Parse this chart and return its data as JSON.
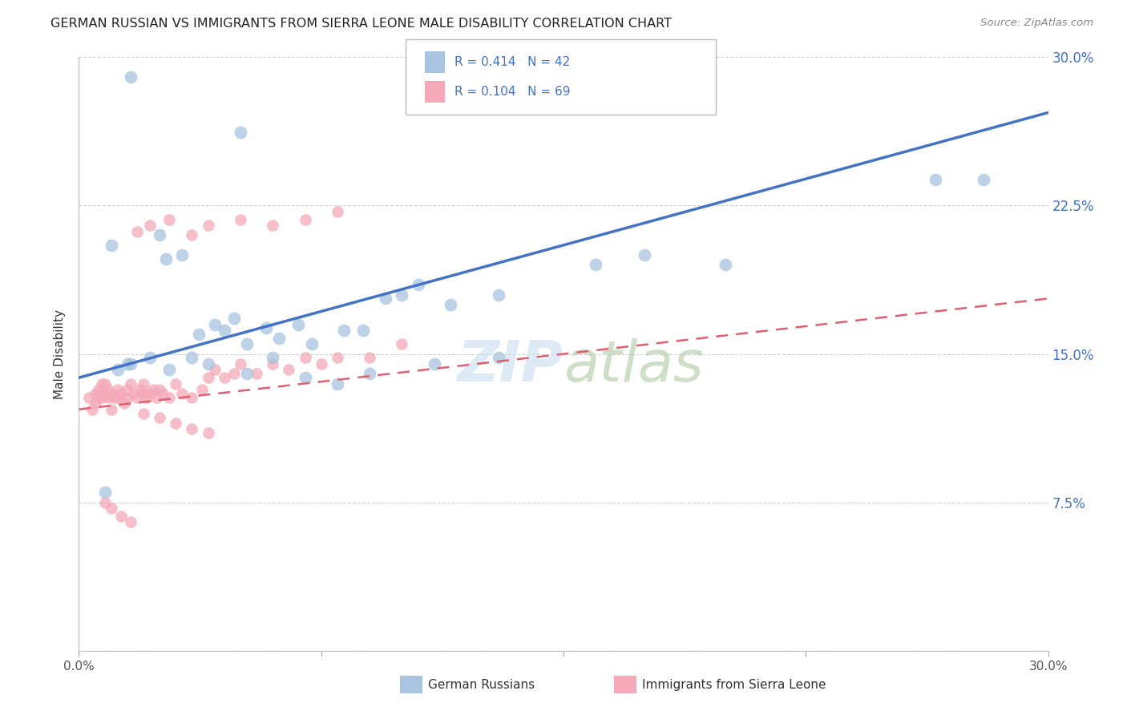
{
  "title": "GERMAN RUSSIAN VS IMMIGRANTS FROM SIERRA LEONE MALE DISABILITY CORRELATION CHART",
  "source": "Source: ZipAtlas.com",
  "ylabel": "Male Disability",
  "yticks": [
    0.0,
    0.075,
    0.15,
    0.225,
    0.3
  ],
  "ytick_labels": [
    "",
    "7.5%",
    "15.0%",
    "22.5%",
    "30.0%"
  ],
  "xlim": [
    0.0,
    0.3
  ],
  "ylim": [
    0.0,
    0.3
  ],
  "blue_color": "#A8C4E0",
  "pink_color": "#F4A8B8",
  "blue_line_color": "#4472C4",
  "pink_line_color": "#E06070",
  "blue_line_x0": 0.0,
  "blue_line_y0": 0.138,
  "blue_line_x1": 0.3,
  "blue_line_y1": 0.272,
  "pink_line_x0": 0.0,
  "pink_line_y0": 0.122,
  "pink_line_x1": 0.3,
  "pink_line_y1": 0.178,
  "blue_scatter_x": [
    0.016,
    0.05,
    0.01,
    0.025,
    0.027,
    0.032,
    0.037,
    0.042,
    0.045,
    0.048,
    0.052,
    0.058,
    0.062,
    0.068,
    0.072,
    0.082,
    0.088,
    0.095,
    0.1,
    0.105,
    0.115,
    0.13,
    0.16,
    0.175,
    0.2,
    0.265,
    0.015,
    0.022,
    0.028,
    0.035,
    0.04,
    0.052,
    0.06,
    0.07,
    0.08,
    0.09,
    0.11,
    0.13,
    0.28,
    0.016,
    0.012,
    0.008
  ],
  "blue_scatter_y": [
    0.29,
    0.262,
    0.205,
    0.21,
    0.198,
    0.2,
    0.16,
    0.165,
    0.162,
    0.168,
    0.155,
    0.163,
    0.158,
    0.165,
    0.155,
    0.162,
    0.162,
    0.178,
    0.18,
    0.185,
    0.175,
    0.18,
    0.195,
    0.2,
    0.195,
    0.238,
    0.145,
    0.148,
    0.142,
    0.148,
    0.145,
    0.14,
    0.148,
    0.138,
    0.135,
    0.14,
    0.145,
    0.148,
    0.238,
    0.145,
    0.142,
    0.08
  ],
  "pink_scatter_x": [
    0.003,
    0.004,
    0.005,
    0.005,
    0.006,
    0.006,
    0.007,
    0.007,
    0.008,
    0.008,
    0.009,
    0.009,
    0.01,
    0.01,
    0.011,
    0.012,
    0.012,
    0.013,
    0.014,
    0.015,
    0.015,
    0.016,
    0.017,
    0.018,
    0.019,
    0.02,
    0.02,
    0.021,
    0.022,
    0.023,
    0.024,
    0.025,
    0.026,
    0.028,
    0.03,
    0.032,
    0.035,
    0.038,
    0.04,
    0.042,
    0.045,
    0.048,
    0.05,
    0.055,
    0.06,
    0.065,
    0.07,
    0.075,
    0.08,
    0.09,
    0.1,
    0.018,
    0.022,
    0.028,
    0.035,
    0.04,
    0.05,
    0.06,
    0.07,
    0.08,
    0.02,
    0.025,
    0.03,
    0.035,
    0.04,
    0.008,
    0.01,
    0.013,
    0.016
  ],
  "pink_scatter_y": [
    0.128,
    0.122,
    0.13,
    0.125,
    0.132,
    0.128,
    0.135,
    0.128,
    0.13,
    0.135,
    0.128,
    0.132,
    0.13,
    0.122,
    0.128,
    0.132,
    0.128,
    0.13,
    0.125,
    0.132,
    0.128,
    0.135,
    0.13,
    0.128,
    0.132,
    0.13,
    0.135,
    0.128,
    0.13,
    0.132,
    0.128,
    0.132,
    0.13,
    0.128,
    0.135,
    0.13,
    0.128,
    0.132,
    0.138,
    0.142,
    0.138,
    0.14,
    0.145,
    0.14,
    0.145,
    0.142,
    0.148,
    0.145,
    0.148,
    0.148,
    0.155,
    0.212,
    0.215,
    0.218,
    0.21,
    0.215,
    0.218,
    0.215,
    0.218,
    0.222,
    0.12,
    0.118,
    0.115,
    0.112,
    0.11,
    0.075,
    0.072,
    0.068,
    0.065
  ]
}
